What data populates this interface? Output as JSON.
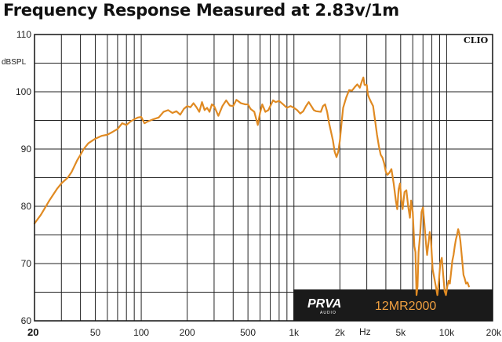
{
  "chart_data": {
    "type": "line",
    "title": "Frequency Response Measured at 2.83v/1m",
    "ylabel": "dBSPL",
    "xunit": "Hz",
    "ylim": [
      60,
      110
    ],
    "xlim": [
      20,
      20000
    ],
    "xscale": "log",
    "grid": true,
    "y_ticks": [
      "60",
      "70",
      "80",
      "90",
      "100",
      "110"
    ],
    "x_ticks": [
      {
        "label": "20",
        "value": 20,
        "bold": true
      },
      {
        "label": "50",
        "value": 50
      },
      {
        "label": "100",
        "value": 100
      },
      {
        "label": "200",
        "value": 200
      },
      {
        "label": "500",
        "value": 500
      },
      {
        "label": "1k",
        "value": 1000
      },
      {
        "label": "2k",
        "value": 2000
      },
      {
        "label": "5k",
        "value": 5000
      },
      {
        "label": "10k",
        "value": 10000
      },
      {
        "label": "20k",
        "value": 20000
      }
    ],
    "watermark": "CLIO",
    "brand": {
      "logo": "PRVA",
      "sub": "AUDIO",
      "model": "12MR2000",
      "panel_color": "#1a1a1a",
      "accent": "#e08a22"
    },
    "line_color": "#e08a22",
    "series": [
      {
        "points": [
          [
            20,
            77
          ],
          [
            22,
            78.5
          ],
          [
            25,
            81
          ],
          [
            28,
            83
          ],
          [
            30,
            84
          ],
          [
            33,
            85
          ],
          [
            35,
            86
          ],
          [
            38,
            88
          ],
          [
            40,
            89
          ],
          [
            42,
            90
          ],
          [
            45,
            91
          ],
          [
            48,
            91.5
          ],
          [
            50,
            91.8
          ],
          [
            55,
            92.3
          ],
          [
            60,
            92.5
          ],
          [
            65,
            93
          ],
          [
            70,
            93.5
          ],
          [
            75,
            94.5
          ],
          [
            80,
            94.2
          ],
          [
            85,
            94.8
          ],
          [
            90,
            95.2
          ],
          [
            95,
            95.5
          ],
          [
            100,
            95.6
          ],
          [
            105,
            94.5
          ],
          [
            110,
            94.8
          ],
          [
            120,
            95.2
          ],
          [
            130,
            95.5
          ],
          [
            140,
            96.5
          ],
          [
            150,
            96.8
          ],
          [
            160,
            96.3
          ],
          [
            170,
            96.6
          ],
          [
            180,
            96
          ],
          [
            190,
            97
          ],
          [
            200,
            97.5
          ],
          [
            210,
            97.3
          ],
          [
            220,
            98
          ],
          [
            230,
            97.3
          ],
          [
            240,
            96.5
          ],
          [
            250,
            98.2
          ],
          [
            260,
            96.8
          ],
          [
            270,
            97.2
          ],
          [
            280,
            96.5
          ],
          [
            290,
            97.8
          ],
          [
            300,
            97.5
          ],
          [
            320,
            95.8
          ],
          [
            340,
            97.5
          ],
          [
            360,
            98.5
          ],
          [
            380,
            97.6
          ],
          [
            400,
            97.5
          ],
          [
            420,
            98.6
          ],
          [
            450,
            98
          ],
          [
            480,
            97.8
          ],
          [
            500,
            97.8
          ],
          [
            520,
            97
          ],
          [
            550,
            96.5
          ],
          [
            580,
            94.2
          ],
          [
            600,
            96.3
          ],
          [
            620,
            97.8
          ],
          [
            650,
            96.5
          ],
          [
            680,
            96.8
          ],
          [
            700,
            97.5
          ],
          [
            730,
            98.5
          ],
          [
            760,
            98.2
          ],
          [
            800,
            98.4
          ],
          [
            850,
            97.8
          ],
          [
            900,
            97.2
          ],
          [
            950,
            97.5
          ],
          [
            1000,
            97.2
          ],
          [
            1050,
            96.8
          ],
          [
            1100,
            96.2
          ],
          [
            1150,
            96.6
          ],
          [
            1200,
            97.5
          ],
          [
            1250,
            98.2
          ],
          [
            1300,
            97.5
          ],
          [
            1350,
            96.8
          ],
          [
            1400,
            96.6
          ],
          [
            1500,
            96.5
          ],
          [
            1550,
            97.5
          ],
          [
            1600,
            97.8
          ],
          [
            1650,
            96.5
          ],
          [
            1700,
            94.5
          ],
          [
            1750,
            93
          ],
          [
            1800,
            91.5
          ],
          [
            1850,
            89.5
          ],
          [
            1900,
            88.6
          ],
          [
            1950,
            89.5
          ],
          [
            2000,
            91.5
          ],
          [
            2050,
            94.5
          ],
          [
            2100,
            97.2
          ],
          [
            2200,
            99
          ],
          [
            2300,
            100.3
          ],
          [
            2400,
            100.2
          ],
          [
            2500,
            100.8
          ],
          [
            2600,
            101.3
          ],
          [
            2700,
            100.7
          ],
          [
            2800,
            102
          ],
          [
            2850,
            102.5
          ],
          [
            2900,
            101.2
          ],
          [
            3000,
            101.2
          ],
          [
            3050,
            99.5
          ],
          [
            3100,
            99
          ],
          [
            3200,
            98.2
          ],
          [
            3300,
            97.5
          ],
          [
            3400,
            95
          ],
          [
            3500,
            92.5
          ],
          [
            3600,
            90.5
          ],
          [
            3700,
            89
          ],
          [
            3800,
            88.5
          ],
          [
            3900,
            87.5
          ],
          [
            4000,
            86
          ],
          [
            4100,
            85.5
          ],
          [
            4200,
            85.8
          ],
          [
            4350,
            86.5
          ],
          [
            4500,
            84
          ],
          [
            4650,
            81
          ],
          [
            4750,
            79.5
          ],
          [
            4850,
            83
          ],
          [
            4950,
            84
          ],
          [
            5050,
            81.2
          ],
          [
            5150,
            79.5
          ],
          [
            5300,
            82.5
          ],
          [
            5450,
            82.8
          ],
          [
            5600,
            80
          ],
          [
            5750,
            78
          ],
          [
            5850,
            81
          ],
          [
            6000,
            79
          ],
          [
            6150,
            73
          ],
          [
            6250,
            72
          ],
          [
            6350,
            64.5
          ],
          [
            6450,
            66
          ],
          [
            6550,
            72
          ],
          [
            6700,
            75
          ],
          [
            6850,
            79
          ],
          [
            7000,
            79.8
          ],
          [
            7150,
            77
          ],
          [
            7300,
            74
          ],
          [
            7450,
            71.5
          ],
          [
            7600,
            73.5
          ],
          [
            7750,
            75.5
          ],
          [
            7900,
            74
          ],
          [
            8100,
            69
          ],
          [
            8300,
            67.5
          ],
          [
            8500,
            66
          ],
          [
            8700,
            64.5
          ],
          [
            8900,
            67
          ],
          [
            9100,
            70.2
          ],
          [
            9300,
            71
          ],
          [
            9500,
            68
          ],
          [
            9700,
            65.2
          ],
          [
            9900,
            64.5
          ],
          [
            10100,
            66
          ],
          [
            10300,
            67
          ],
          [
            10500,
            66.5
          ],
          [
            10700,
            68.5
          ],
          [
            10900,
            70.5
          ],
          [
            11100,
            71.5
          ],
          [
            11300,
            73
          ],
          [
            11500,
            74.2
          ],
          [
            11700,
            75
          ],
          [
            11900,
            76
          ],
          [
            12100,
            75.3
          ],
          [
            12300,
            74
          ],
          [
            12500,
            72
          ],
          [
            12700,
            70
          ],
          [
            12900,
            68
          ],
          [
            13100,
            67.5
          ],
          [
            13400,
            66.5
          ],
          [
            13700,
            66.7
          ],
          [
            14000,
            66
          ]
        ]
      }
    ]
  }
}
